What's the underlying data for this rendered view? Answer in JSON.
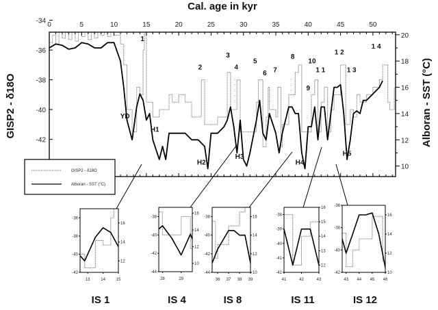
{
  "chart_data": {
    "type": "line",
    "title": "Cal. age in kyr",
    "xlabel": "Cal. age in kyr",
    "ylabel_left": "GISP2 - δ18O",
    "ylabel_right": "Alboran - SST (°C)",
    "xlim": [
      0,
      53.5
    ],
    "ylim_left": [
      -34.8,
      -44.5
    ],
    "ylim_right": [
      20.2,
      9.2
    ],
    "x_ticks": [
      "0",
      "5",
      "10",
      "15",
      "20",
      "25",
      "30",
      "35",
      "40",
      "45",
      "50"
    ],
    "y_left_ticks": [
      "-34",
      "-36",
      "-38",
      "-40",
      "-42"
    ],
    "y_right_ticks": [
      "20",
      "18",
      "16",
      "14",
      "12",
      "10"
    ],
    "legend": {
      "placement": "bottom-left",
      "entries": [
        {
          "label": "GISP2 - δ18O",
          "style": "dotted"
        },
        {
          "label": "Alboran - SST (°C)",
          "style": "solid"
        }
      ]
    },
    "series": [
      {
        "name": "GISP2 - δ18O",
        "axis": "left",
        "color": "#777777",
        "x": [
          0,
          0.5,
          1,
          1.5,
          2,
          2.5,
          3,
          3.5,
          4,
          4.5,
          5,
          5.5,
          6,
          6.5,
          7,
          7.5,
          8,
          8.5,
          9,
          9.5,
          10,
          10.5,
          11,
          11.5,
          12,
          12.8,
          13.5,
          14,
          14.5,
          14.7,
          15,
          16,
          17,
          18,
          18.5,
          19,
          20,
          21,
          22,
          23,
          23.5,
          24,
          25,
          26,
          27,
          27.5,
          28,
          28.5,
          29,
          29.5,
          30,
          31,
          32,
          32.3,
          33,
          33.5,
          33.8,
          34,
          35,
          35.3,
          35.8,
          36,
          37,
          38,
          38.5,
          39,
          40,
          40.5,
          41,
          41.5,
          42,
          42.5,
          43,
          43.5,
          44,
          45,
          45.5,
          45.8,
          46.5,
          47,
          47.5,
          48,
          49,
          50,
          51,
          51.5,
          52,
          52.3,
          52.6,
          53,
          53.3
        ],
        "y": [
          -35.5,
          -35,
          -35.6,
          -34.6,
          -35.2,
          -34.4,
          -35.3,
          -34.8,
          -35.4,
          -34.5,
          -35.1,
          -34.6,
          -35.3,
          -34.7,
          -35.2,
          -34.4,
          -35,
          -34.6,
          -35.1,
          -34.5,
          -35,
          -35,
          -35.6,
          -37,
          -40,
          -41.5,
          -38.5,
          -39,
          -36,
          -34.5,
          -39.5,
          -40.5,
          -40,
          -40,
          -39,
          -39.5,
          -39,
          -39.5,
          -40.5,
          -40.5,
          -38,
          -41,
          -41,
          -40.5,
          -40.5,
          -37.5,
          -40,
          -40,
          -38,
          -41.5,
          -41.5,
          -41.5,
          -39.5,
          -38,
          -42.5,
          -40.5,
          -38.5,
          -40,
          -40.5,
          -38.5,
          -42.5,
          -41,
          -39,
          -37.5,
          -37,
          -41.5,
          -41.5,
          -39,
          -38,
          -41.5,
          -39.5,
          -38.5,
          -41.5,
          -40,
          -39,
          -37,
          -37,
          -41,
          -40,
          -40.5,
          -39,
          -39.5,
          -39,
          -38.5,
          -38,
          -37,
          -37,
          -39.5,
          -40,
          -40,
          -38.5
        ]
      },
      {
        "name": "Alboran - SST (°C)",
        "axis": "right",
        "color": "#000000",
        "x": [
          0,
          1,
          2,
          3,
          4,
          5,
          6,
          7,
          8,
          9,
          10,
          11,
          11.5,
          12,
          12.8,
          13.5,
          14,
          14.5,
          15,
          15.5,
          16,
          17,
          17.5,
          18,
          18.5,
          19,
          20,
          21,
          22,
          23,
          24,
          24.5,
          25,
          26,
          27,
          27.5,
          28,
          28.5,
          29,
          29.5,
          30,
          30.5,
          31,
          32,
          32.5,
          33,
          33.5,
          34,
          35,
          35.5,
          36,
          37,
          37.5,
          38,
          38.5,
          39,
          39.5,
          40,
          40.5,
          41,
          41.5,
          42,
          42.5,
          43,
          43.5,
          44,
          44.5,
          45,
          45.5,
          46,
          46.5,
          47,
          47.5,
          48,
          48.5,
          49,
          50,
          51,
          51.5
        ],
        "y": [
          19,
          19.3,
          19.2,
          18.9,
          19,
          19.4,
          19.3,
          19,
          19,
          19.4,
          19.4,
          18,
          16,
          13.5,
          12,
          14.5,
          15.5,
          15,
          13.5,
          14,
          12,
          10.5,
          11.5,
          10.5,
          12.5,
          12.5,
          12.5,
          12.5,
          12,
          12,
          11.5,
          9.8,
          12.5,
          12.5,
          13,
          13.5,
          14.5,
          13,
          11,
          13.5,
          10.5,
          10,
          11,
          13.5,
          15,
          12.5,
          12,
          14,
          12.5,
          11,
          12.5,
          14.5,
          14.5,
          14,
          14,
          11,
          9.8,
          13,
          13,
          14.5,
          12,
          14.5,
          14.5,
          12,
          14,
          16,
          16,
          16.2,
          14,
          10.5,
          12,
          14,
          14.2,
          14,
          15,
          15,
          15.5,
          16,
          16.5
        ]
      }
    ],
    "annotations": [
      {
        "text": "1",
        "x": 14.4,
        "y": -34.4
      },
      {
        "text": "2",
        "x": 23.3,
        "y": -37.3
      },
      {
        "text": "3",
        "x": 27.6,
        "y": -36.5
      },
      {
        "text": "4",
        "x": 28.9,
        "y": -37.3
      },
      {
        "text": "5",
        "x": 31.8,
        "y": -36.9
      },
      {
        "text": "6",
        "x": 33.3,
        "y": -37.7
      },
      {
        "text": "7",
        "x": 34.9,
        "y": -37.5
      },
      {
        "text": "8",
        "x": 37.6,
        "y": -36.6
      },
      {
        "text": "9",
        "x": 40,
        "y": -38.7
      },
      {
        "text": "10",
        "x": 40.6,
        "y": -36.9
      },
      {
        "text": "1 1",
        "x": 41.9,
        "y": -37.5
      },
      {
        "text": "1 2",
        "x": 44.8,
        "y": -36.3
      },
      {
        "text": "1 3",
        "x": 46.7,
        "y": -37.5
      },
      {
        "text": "1 4",
        "x": 50.5,
        "y": -35.9
      },
      {
        "text": "YD",
        "x": 11.7,
        "y": -40.6
      },
      {
        "text": "H1",
        "x": 16.3,
        "y": -41.5
      },
      {
        "text": "H2",
        "x": 23.5,
        "y": -43.7
      },
      {
        "text": "H3",
        "x": 29.4,
        "y": -43.3
      },
      {
        "text": "H4",
        "x": 38.7,
        "y": -43.7
      },
      {
        "text": "H5",
        "x": 46,
        "y": -43.1
      }
    ],
    "insets": [
      {
        "label": "IS 1",
        "xlim": [
          12.5,
          15
        ],
        "ylim_left": [
          -42,
          -35
        ],
        "ylim_right": [
          10.8,
          17.5
        ],
        "x_ticks": [
          "13",
          "14",
          "15"
        ],
        "y_left_ticks": [
          "-36",
          "-38",
          "-40",
          "-42"
        ],
        "y_right_ticks": [
          "16",
          "14",
          "12"
        ]
      },
      {
        "label": "IS 4",
        "xlim": [
          27.8,
          29.6
        ],
        "ylim_left": [
          -44,
          -37
        ],
        "ylim_right": [
          9,
          16.7
        ],
        "x_ticks": [
          "28",
          "29"
        ],
        "y_left_ticks": [
          "-38",
          "-40",
          "-42",
          "-44"
        ],
        "y_right_ticks": [
          "16",
          "14",
          "12",
          "10"
        ]
      },
      {
        "label": "IS 8",
        "xlim": [
          35.5,
          39
        ],
        "ylim_left": [
          -44,
          -37
        ],
        "ylim_right": [
          10,
          17
        ],
        "x_ticks": [
          "36",
          "37",
          "38",
          "39"
        ],
        "y_left_ticks": [
          "-38",
          "-40",
          "-42",
          "-44"
        ],
        "y_right_ticks": [
          "16",
          "14",
          "12",
          "10"
        ]
      },
      {
        "label": "IS 11",
        "xlim": [
          41,
          43
        ],
        "ylim_left": [
          -42,
          -37.5
        ],
        "ylim_right": [
          11.5,
          16
        ],
        "x_ticks": [
          "41",
          "42",
          "43"
        ],
        "y_left_ticks": [
          "-38",
          "-39",
          "-40",
          "-41",
          "-42"
        ],
        "y_right_ticks": [
          "16",
          "15",
          "14",
          "13",
          "12"
        ]
      },
      {
        "label": "IS 12",
        "xlim": [
          42.7,
          46
        ],
        "ylim_left": [
          -42,
          -36
        ],
        "ylim_right": [
          10,
          17
        ],
        "x_ticks": [
          "43",
          "44",
          "45",
          "46"
        ],
        "y_left_ticks": [
          "-36",
          "-38",
          "-40",
          "-42"
        ],
        "y_right_ticks": [
          "16",
          "14",
          "12",
          "10"
        ]
      }
    ]
  }
}
